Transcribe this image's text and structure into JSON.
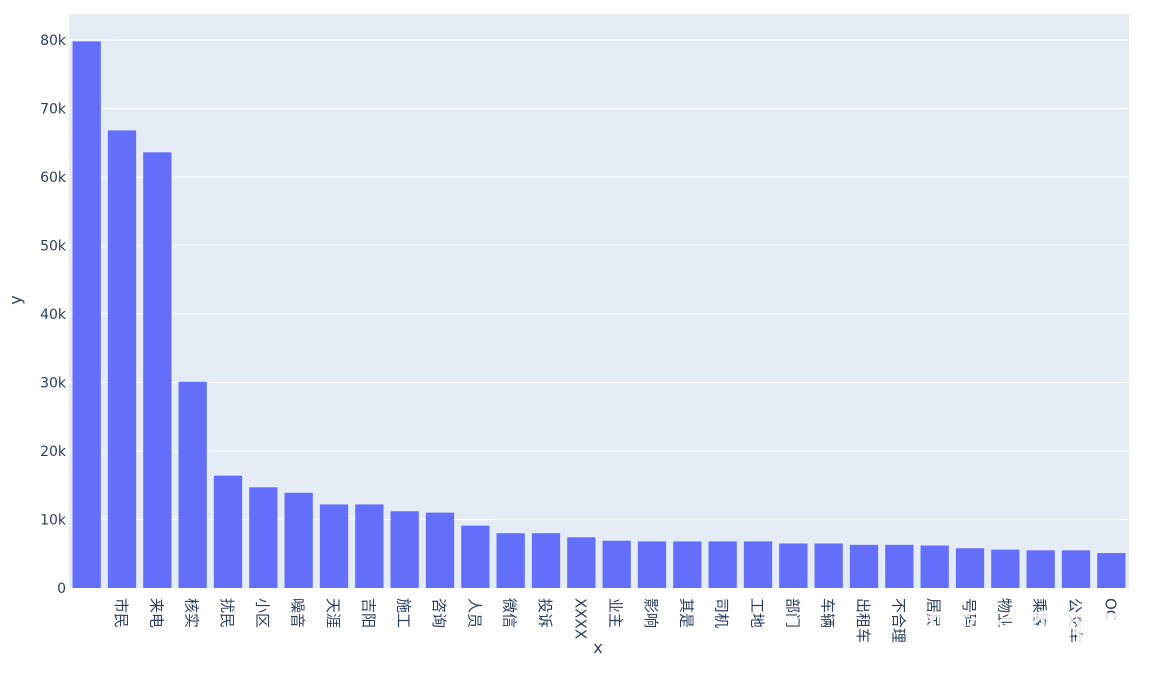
{
  "chart_data": {
    "type": "bar",
    "categories": [
      "",
      "市民",
      "来电",
      "核实",
      "扰民",
      "小区",
      "噪音",
      "天涯",
      "吉阳",
      "施工",
      "咨询",
      "人员",
      "微信",
      "投诉",
      "XXXX",
      "业主",
      "影响",
      "其是",
      "司机",
      "工地",
      "部门",
      "车辆",
      "出租车",
      "不合理",
      "居民",
      "号码",
      "物业",
      "乘客",
      "公交车",
      "OC"
    ],
    "values": [
      79800,
      66800,
      63600,
      30100,
      16400,
      14700,
      13900,
      12200,
      12200,
      11200,
      11000,
      9100,
      8000,
      8000,
      7400,
      6900,
      6800,
      6800,
      6800,
      6800,
      6500,
      6500,
      6300,
      6300,
      6200,
      5800,
      5600,
      5500,
      5500,
      5100
    ],
    "ylim": [
      0,
      80000
    ],
    "yticks": [
      0,
      10000,
      20000,
      30000,
      40000,
      50000,
      60000,
      70000,
      80000
    ],
    "ytick_labels": [
      "0",
      "10k",
      "20k",
      "30k",
      "40k",
      "50k",
      "60k",
      "70k",
      "80k"
    ],
    "xlabel": "x",
    "ylabel": "y",
    "grid": true,
    "colors": {
      "bar": "#636efa",
      "plot_bg": "#e5ecf6",
      "grid": "#ffffff",
      "text": "#2a3f5f"
    }
  },
  "watermark": "知乎 @李花花"
}
